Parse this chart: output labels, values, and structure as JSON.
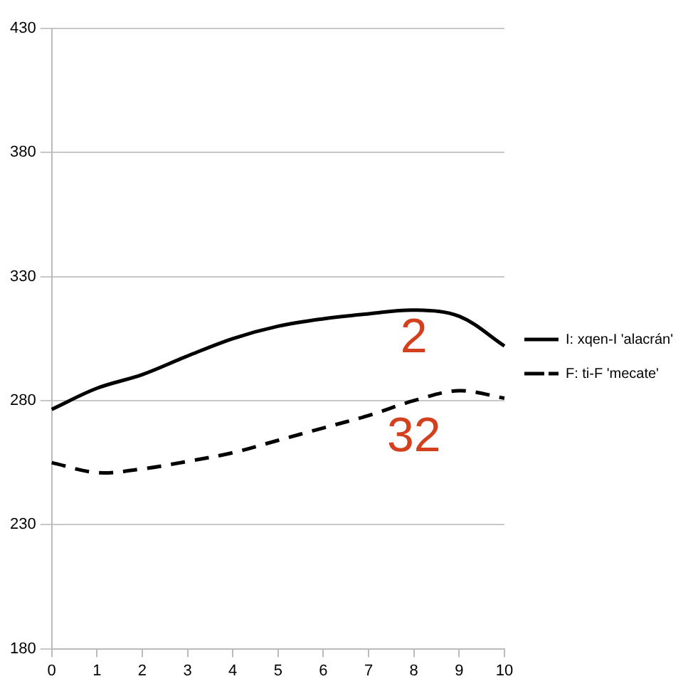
{
  "chart_data": {
    "type": "line",
    "categories": [
      "0",
      "1",
      "2",
      "3",
      "4",
      "5",
      "6",
      "7",
      "8",
      "9",
      "10"
    ],
    "series": [
      {
        "name": "I: xqen-I 'alacrán'",
        "color": "#000000",
        "line_style": "solid",
        "values": [
          276.5,
          285,
          290.5,
          298,
          305,
          310,
          313,
          315,
          316.5,
          314,
          302
        ]
      },
      {
        "name": "F: ti-F 'mecate'",
        "color": "#000000",
        "line_style": "dashed",
        "values": [
          255,
          251,
          252.5,
          255.5,
          259,
          264,
          269,
          274,
          280,
          284,
          281
        ]
      }
    ],
    "ylim": [
      180,
      430
    ],
    "yticks": [
      180,
      230,
      280,
      330,
      380,
      430
    ],
    "grid": "y",
    "legend": "right",
    "marker": "none",
    "annotations": [
      "2",
      "32"
    ]
  }
}
